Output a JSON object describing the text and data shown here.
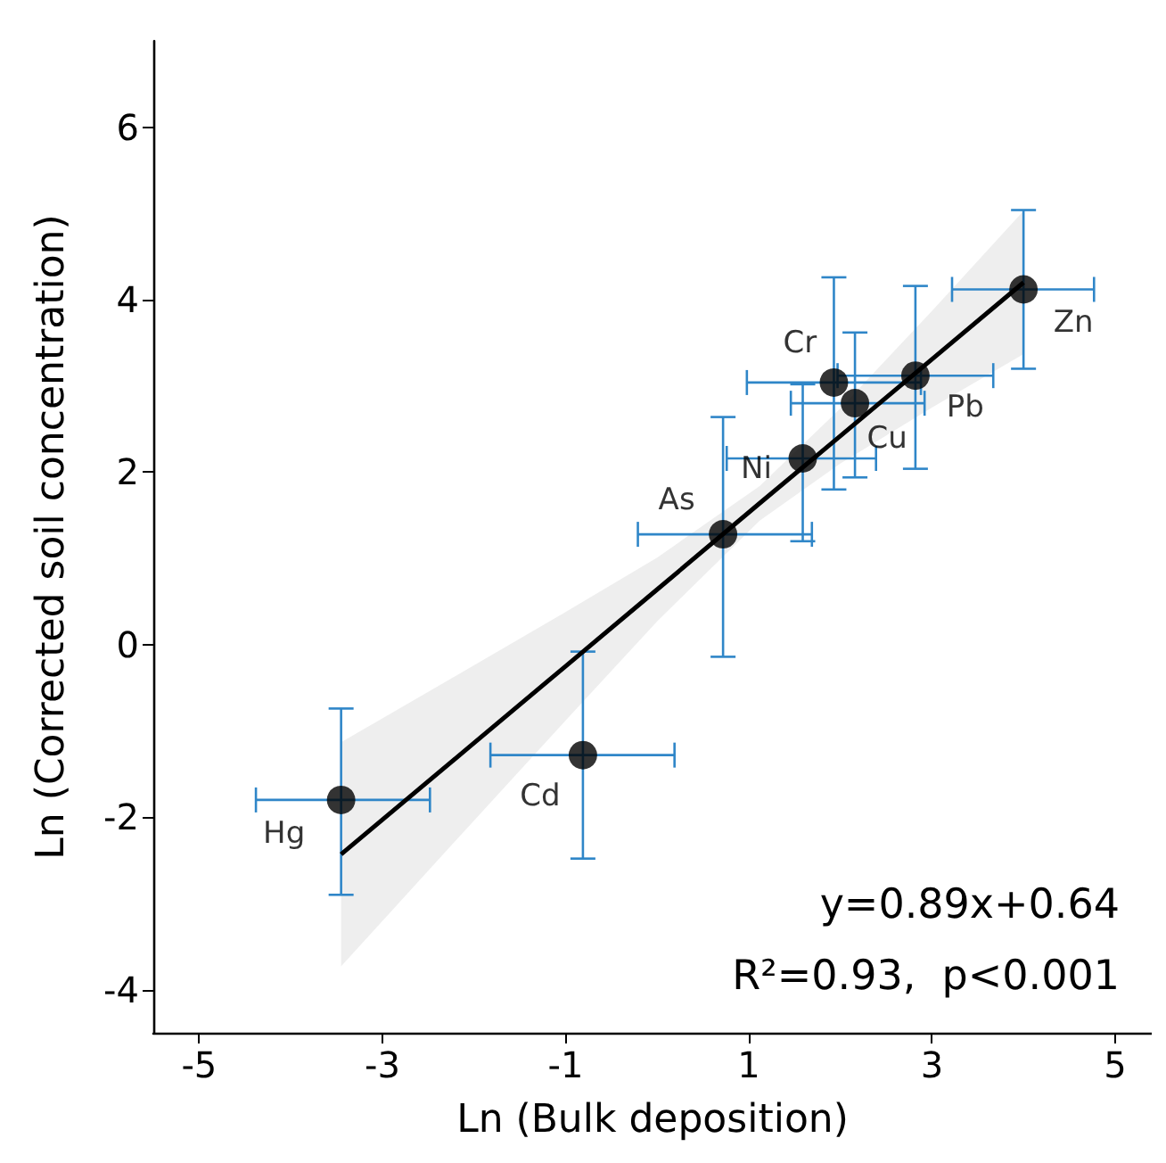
{
  "chart_data": {
    "type": "scatter",
    "xlabel": "Ln (Bulk deposition)",
    "ylabel": "Ln (Corrected soil concentration)",
    "xlim": [
      -5.5,
      5.4
    ],
    "ylim": [
      -4.5,
      7
    ],
    "xticks": [
      -5,
      -3,
      -1,
      1,
      3,
      5
    ],
    "yticks": [
      -4,
      -2,
      0,
      2,
      4,
      6
    ],
    "grid": false,
    "marker": "circle",
    "series": [
      {
        "color": "#000000",
        "x": [
          -3.45,
          -0.81,
          0.72,
          1.59,
          1.93,
          2.16,
          2.82,
          4.0
        ],
        "values": [
          -1.8,
          -1.28,
          1.28,
          2.16,
          3.04,
          2.8,
          3.12,
          4.12
        ],
        "errors": [
          [
            -2.9,
            -0.74
          ],
          [
            -2.48,
            -0.08
          ],
          [
            -0.14,
            2.64
          ],
          [
            1.2,
            3.02
          ],
          [
            1.8,
            4.26
          ],
          [
            1.94,
            3.62
          ],
          [
            2.04,
            4.16
          ],
          [
            3.2,
            5.04
          ]
        ],
        "xerrors": [
          [
            -4.38,
            -2.48
          ],
          [
            -1.82,
            0.19
          ],
          [
            -0.21,
            1.69
          ],
          [
            0.76,
            2.39
          ],
          [
            0.98,
            2.88
          ],
          [
            1.46,
            2.92
          ],
          [
            1.97,
            3.67
          ],
          [
            3.22,
            4.77
          ]
        ]
      },
      {
        "type": "line",
        "marker": "none",
        "color": "#000000",
        "x": [
          -3.45,
          -2,
          -1,
          0,
          1.12,
          2,
          3,
          4
        ],
        "values": [
          -2.43,
          -1.14,
          -0.25,
          0.64,
          1.64,
          2.42,
          3.31,
          4.2
        ],
        "lower": [
          -3.73,
          -2.04,
          -0.88,
          0.27,
          1.44,
          2.1,
          2.75,
          3.37
        ],
        "upper": [
          -1.13,
          -0.24,
          0.38,
          1.01,
          1.84,
          2.74,
          3.87,
          5.03
        ]
      }
    ],
    "annotations": [
      {
        "text": "Hg",
        "x": -3.45,
        "y": -1.8
      },
      {
        "text": "Cd",
        "x": -0.81,
        "y": -1.28
      },
      {
        "text": "As",
        "x": 0.72,
        "y": 1.28
      },
      {
        "text": "Ni",
        "x": 1.59,
        "y": 2.16
      },
      {
        "text": "Cr",
        "x": 1.93,
        "y": 3.04
      },
      {
        "text": "Cu",
        "x": 2.16,
        "y": 2.8
      },
      {
        "text": "Pb",
        "x": 2.82,
        "y": 3.12
      },
      {
        "text": "Zn",
        "x": 4.0,
        "y": 4.12
      },
      "y=0.89x+0.64",
      "R²=0.93,  p<0.001"
    ]
  }
}
